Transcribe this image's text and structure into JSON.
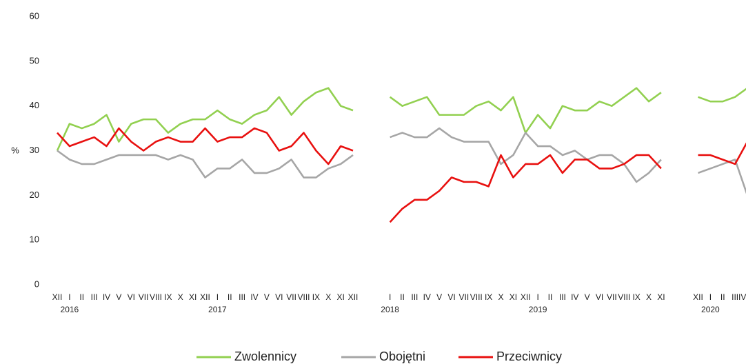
{
  "chart_data": {
    "type": "line",
    "ylabel": "%",
    "ylim": [
      0,
      60
    ],
    "yticks": [
      0,
      10,
      20,
      30,
      40,
      50,
      60
    ],
    "grid": false,
    "legend": "bottom",
    "categories": [
      "XII",
      "I",
      "II",
      "III",
      "IV",
      "V",
      "VI",
      "VII",
      "VIII",
      "IX",
      "X",
      "XI",
      "XII",
      "I",
      "II",
      "III",
      "IV",
      "V",
      "VI",
      "VII",
      "VIII",
      "IX",
      "X",
      "XI",
      "XII",
      null,
      null,
      "I",
      "II",
      "III",
      "IV",
      "V",
      "VI",
      "VII",
      "VIII",
      "IX",
      "X",
      "XI",
      "XII",
      "I",
      "II",
      "III",
      "IV",
      "V",
      "VI",
      "VII",
      "VIII",
      "IX",
      "X",
      "XI",
      null,
      null,
      "XII",
      "I",
      "II",
      "III",
      "IV/VI"
    ],
    "years": [
      null,
      "2016",
      null,
      null,
      null,
      null,
      null,
      null,
      null,
      null,
      null,
      null,
      null,
      "2017",
      null,
      null,
      null,
      null,
      null,
      null,
      null,
      null,
      null,
      null,
      null,
      null,
      null,
      "2018",
      null,
      null,
      null,
      null,
      null,
      null,
      null,
      null,
      null,
      null,
      null,
      "2019",
      null,
      null,
      null,
      null,
      null,
      null,
      null,
      null,
      null,
      null,
      null,
      null,
      null,
      "2020",
      null,
      null,
      null
    ],
    "series": [
      {
        "name": "Zwolennicy",
        "color": "#92d050",
        "values": [
          30,
          36,
          35,
          36,
          38,
          32,
          36,
          37,
          37,
          34,
          36,
          37,
          37,
          39,
          37,
          36,
          38,
          39,
          42,
          38,
          41,
          43,
          44,
          40,
          39,
          null,
          null,
          42,
          40,
          41,
          42,
          38,
          38,
          38,
          40,
          41,
          39,
          42,
          34,
          38,
          35,
          40,
          39,
          39,
          41,
          40,
          42,
          44,
          41,
          43,
          null,
          null,
          42,
          41,
          41,
          42,
          44
        ]
      },
      {
        "name": "Obojętni",
        "color": "#a6a6a6",
        "values": [
          30,
          28,
          27,
          27,
          28,
          29,
          29,
          29,
          29,
          28,
          29,
          28,
          24,
          26,
          26,
          28,
          25,
          25,
          26,
          28,
          24,
          24,
          26,
          27,
          29,
          null,
          null,
          33,
          34,
          33,
          33,
          35,
          33,
          32,
          32,
          32,
          27,
          29,
          34,
          31,
          31,
          29,
          30,
          28,
          29,
          29,
          27,
          23,
          25,
          28,
          null,
          null,
          25,
          26,
          27,
          28,
          20
        ]
      },
      {
        "name": "Przeciwnicy",
        "color": "#e8100f",
        "values": [
          34,
          31,
          32,
          33,
          31,
          35,
          32,
          30,
          32,
          33,
          32,
          32,
          35,
          32,
          33,
          33,
          35,
          34,
          30,
          31,
          34,
          30,
          27,
          31,
          30,
          null,
          null,
          14,
          17,
          19,
          19,
          21,
          24,
          23,
          23,
          22,
          29,
          24,
          27,
          27,
          29,
          25,
          28,
          28,
          26,
          26,
          27,
          29,
          29,
          26,
          null,
          null,
          29,
          29,
          28,
          27,
          32
        ]
      }
    ]
  }
}
